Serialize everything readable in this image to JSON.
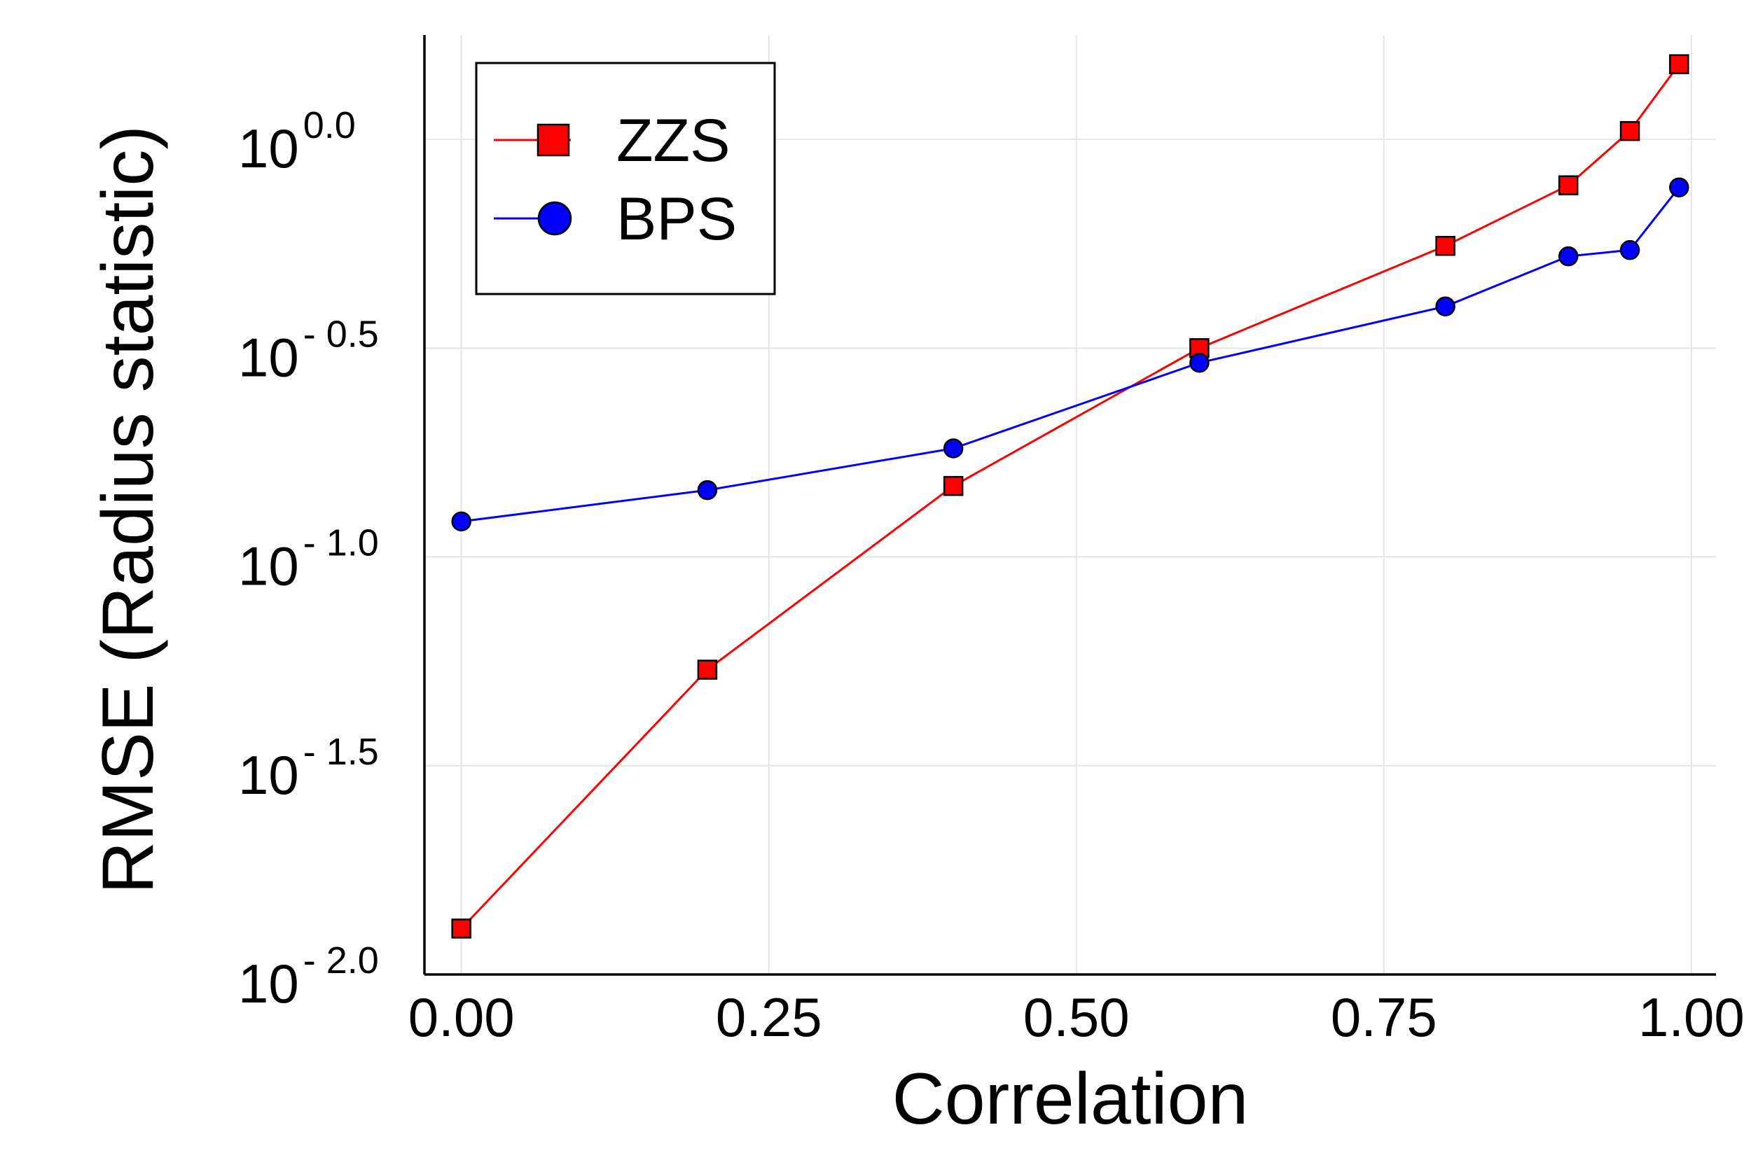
{
  "chart_data": {
    "type": "line",
    "title": "",
    "xlabel": "Correlation",
    "ylabel": "RMSE (Radius statistic)",
    "xscale": "linear",
    "yscale": "log10",
    "xlim": [
      -0.03,
      1.02
    ],
    "ylim_log10": [
      -2.0,
      0.25
    ],
    "x_ticks": [
      {
        "value": 0.0,
        "label": "0.00"
      },
      {
        "value": 0.25,
        "label": "0.25"
      },
      {
        "value": 0.5,
        "label": "0.50"
      },
      {
        "value": 0.75,
        "label": "0.75"
      },
      {
        "value": 1.0,
        "label": "1.00"
      }
    ],
    "y_ticks": [
      {
        "value": 0.0,
        "base": "10",
        "exp": "0.0"
      },
      {
        "value": -0.5,
        "base": "10",
        "exp": "- 0.5"
      },
      {
        "value": -1.0,
        "base": "10",
        "exp": "- 1.0"
      },
      {
        "value": -1.5,
        "base": "10",
        "exp": "- 1.5"
      },
      {
        "value": -2.0,
        "base": "10",
        "exp": "- 2.0"
      }
    ],
    "grid": true,
    "legend_position": "top-left",
    "series": [
      {
        "name": "ZZS",
        "color": "#ff0000",
        "marker": "square",
        "x": [
          0.0,
          0.2,
          0.4,
          0.6,
          0.8,
          0.9,
          0.95,
          0.99
        ],
        "log10_y": [
          -1.89,
          -1.27,
          -0.83,
          -0.5,
          -0.255,
          -0.11,
          0.02,
          0.18
        ]
      },
      {
        "name": "BPS",
        "color": "#0000ff",
        "marker": "circle",
        "x": [
          0.0,
          0.2,
          0.4,
          0.6,
          0.8,
          0.9,
          0.95,
          0.99
        ],
        "log10_y": [
          -0.915,
          -0.84,
          -0.74,
          -0.535,
          -0.4,
          -0.28,
          -0.265,
          -0.115
        ]
      }
    ]
  }
}
